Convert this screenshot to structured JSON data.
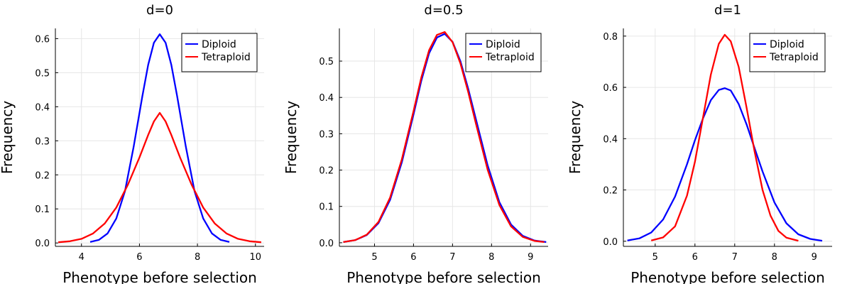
{
  "figure": {
    "series_colors": {
      "Diploid": "#0000ff",
      "Tetraploid": "#ff0000"
    }
  },
  "chart_data": [
    {
      "type": "line",
      "title": "d=0",
      "xlabel": "Phenotype before selection",
      "ylabel": "Frequency",
      "xlim": [
        3.1,
        10.3
      ],
      "ylim": [
        -0.01,
        0.63
      ],
      "xticks": [
        4,
        6,
        8,
        10
      ],
      "yticks": [
        0.0,
        0.1,
        0.2,
        0.3,
        0.4,
        0.5,
        0.6
      ],
      "ytick_labels": [
        "0.0",
        "0.1",
        "0.2",
        "0.3",
        "0.4",
        "0.5",
        "0.6"
      ],
      "grid": true,
      "legend_position": "top-right",
      "series": [
        {
          "name": "Diploid",
          "color": "#0000ff",
          "x": [
            4.3,
            4.6,
            4.9,
            5.2,
            5.5,
            5.8,
            6.1,
            6.3,
            6.5,
            6.7,
            6.9,
            7.1,
            7.3,
            7.6,
            7.9,
            8.2,
            8.5,
            8.8,
            9.1
          ],
          "y": [
            0.003,
            0.009,
            0.028,
            0.072,
            0.152,
            0.282,
            0.431,
            0.523,
            0.588,
            0.613,
            0.588,
            0.523,
            0.431,
            0.282,
            0.152,
            0.072,
            0.028,
            0.009,
            0.003
          ]
        },
        {
          "name": "Tetraploid",
          "color": "#ff0000",
          "x": [
            3.2,
            3.6,
            4.0,
            4.4,
            4.8,
            5.2,
            5.6,
            6.0,
            6.3,
            6.5,
            6.7,
            6.9,
            7.1,
            7.4,
            7.8,
            8.2,
            8.6,
            9.0,
            9.4,
            9.8,
            10.2
          ],
          "y": [
            0.002,
            0.005,
            0.012,
            0.028,
            0.057,
            0.104,
            0.171,
            0.251,
            0.317,
            0.357,
            0.382,
            0.357,
            0.317,
            0.251,
            0.171,
            0.104,
            0.057,
            0.028,
            0.012,
            0.005,
            0.002
          ]
        }
      ]
    },
    {
      "type": "line",
      "title": "d=0.5",
      "xlabel": "Phenotype before selection",
      "ylabel": "Frequency",
      "xlim": [
        4.1,
        9.45
      ],
      "ylim": [
        -0.01,
        0.59
      ],
      "xticks": [
        5,
        6,
        7,
        8,
        9
      ],
      "yticks": [
        0.0,
        0.1,
        0.2,
        0.3,
        0.4,
        0.5
      ],
      "ytick_labels": [
        "0.0",
        "0.1",
        "0.2",
        "0.3",
        "0.4",
        "0.5"
      ],
      "grid": true,
      "legend_position": "top-right",
      "series": [
        {
          "name": "Diploid",
          "color": "#0000ff",
          "x": [
            4.2,
            4.5,
            4.8,
            5.1,
            5.4,
            5.7,
            6.0,
            6.2,
            6.4,
            6.6,
            6.8,
            7.0,
            7.2,
            7.4,
            7.6,
            7.9,
            8.2,
            8.5,
            8.8,
            9.1,
            9.4
          ],
          "y": [
            0.002,
            0.007,
            0.021,
            0.054,
            0.118,
            0.221,
            0.353,
            0.446,
            0.522,
            0.565,
            0.575,
            0.553,
            0.5,
            0.425,
            0.34,
            0.213,
            0.112,
            0.05,
            0.019,
            0.006,
            0.002
          ]
        },
        {
          "name": "Tetraploid",
          "color": "#ff0000",
          "x": [
            4.2,
            4.5,
            4.8,
            5.1,
            5.4,
            5.7,
            6.0,
            6.2,
            6.4,
            6.6,
            6.8,
            7.0,
            7.2,
            7.4,
            7.6,
            7.9,
            8.2,
            8.5,
            8.8,
            9.1,
            9.35
          ],
          "y": [
            0.002,
            0.007,
            0.022,
            0.057,
            0.124,
            0.229,
            0.362,
            0.455,
            0.53,
            0.572,
            0.58,
            0.552,
            0.494,
            0.416,
            0.328,
            0.201,
            0.104,
            0.045,
            0.016,
            0.005,
            0.002
          ]
        }
      ]
    },
    {
      "type": "line",
      "title": "d=1",
      "xlabel": "Phenotype before selection",
      "ylabel": "Frequency",
      "xlim": [
        4.2,
        9.45
      ],
      "ylim": [
        -0.02,
        0.83
      ],
      "xticks": [
        5,
        6,
        7,
        8,
        9
      ],
      "yticks": [
        0.0,
        0.2,
        0.4,
        0.6,
        0.8
      ],
      "ytick_labels": [
        "0.0",
        "0.2",
        "0.4",
        "0.6",
        "0.8"
      ],
      "grid": true,
      "legend_position": "top-right",
      "series": [
        {
          "name": "Diploid",
          "color": "#0000ff",
          "x": [
            4.3,
            4.6,
            4.9,
            5.2,
            5.5,
            5.8,
            6.0,
            6.2,
            6.4,
            6.6,
            6.75,
            6.9,
            7.1,
            7.3,
            7.5,
            7.7,
            8.0,
            8.3,
            8.6,
            8.9,
            9.2
          ],
          "y": [
            0.003,
            0.011,
            0.034,
            0.085,
            0.174,
            0.3,
            0.394,
            0.478,
            0.55,
            0.59,
            0.597,
            0.588,
            0.535,
            0.455,
            0.363,
            0.272,
            0.151,
            0.07,
            0.027,
            0.009,
            0.002
          ]
        },
        {
          "name": "Tetraploid",
          "color": "#ff0000",
          "x": [
            4.9,
            5.2,
            5.5,
            5.8,
            6.0,
            6.2,
            6.4,
            6.6,
            6.75,
            6.9,
            7.1,
            7.3,
            7.5,
            7.7,
            7.9,
            8.1,
            8.3,
            8.6
          ],
          "y": [
            0.003,
            0.015,
            0.058,
            0.178,
            0.31,
            0.48,
            0.65,
            0.77,
            0.805,
            0.78,
            0.68,
            0.52,
            0.35,
            0.2,
            0.1,
            0.04,
            0.014,
            0.002
          ]
        }
      ]
    }
  ]
}
